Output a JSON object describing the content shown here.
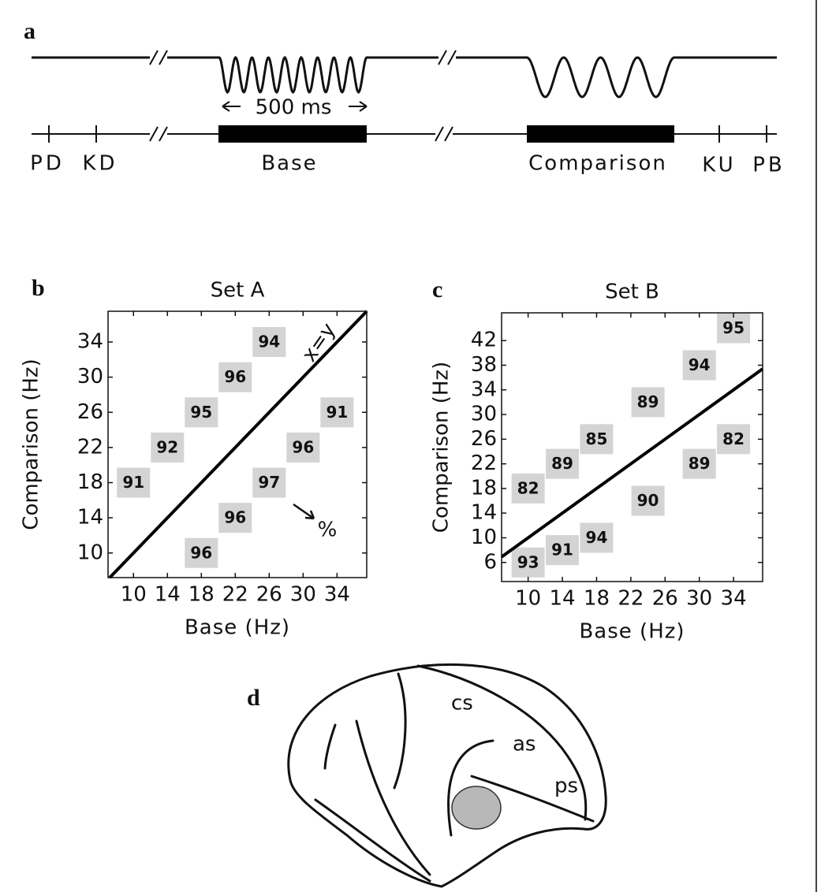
{
  "panel_a": {
    "letter": "a",
    "duration": "500 ms",
    "events": [
      "PD",
      "KD",
      "Base",
      "Comparison",
      "KU",
      "PB"
    ]
  },
  "chart_data": [
    {
      "type": "scatter",
      "panel_label": "b",
      "title": "Set A",
      "x_label": "Base (Hz)",
      "y_label": "Comparison (Hz)",
      "xlim": [
        7,
        37.5
      ],
      "ylim": [
        7.2,
        37.5
      ],
      "xticks": [
        10,
        14,
        18,
        22,
        26,
        30,
        34
      ],
      "yticks": [
        10,
        14,
        18,
        22,
        26,
        30,
        34
      ],
      "x": [
        10,
        14,
        18,
        22,
        26,
        18,
        22,
        26,
        30,
        34
      ],
      "y": [
        18,
        22,
        26,
        30,
        34,
        10,
        14,
        18,
        22,
        26
      ],
      "labels": [
        91,
        92,
        95,
        96,
        94,
        96,
        96,
        97,
        96,
        91
      ],
      "box_color": "#d4d4d4",
      "identity_line": true,
      "line_label": "x=y",
      "annotation": "%"
    },
    {
      "type": "scatter",
      "panel_label": "c",
      "title": "Set B",
      "x_label": "Base (Hz)",
      "y_label": "Comparison (Hz)",
      "xlim": [
        6.9,
        37.4
      ],
      "ylim": [
        2.9,
        46.5
      ],
      "xticks": [
        10,
        14,
        18,
        22,
        26,
        30,
        34
      ],
      "yticks": [
        6,
        10,
        14,
        18,
        22,
        26,
        30,
        34,
        38,
        42
      ],
      "x": [
        10,
        14,
        18,
        24,
        10,
        14,
        18,
        24,
        30,
        34,
        30,
        34
      ],
      "y": [
        6,
        8,
        10,
        16,
        18,
        22,
        26,
        32,
        38,
        44,
        22,
        26
      ],
      "labels": [
        93,
        91,
        94,
        90,
        82,
        89,
        85,
        89,
        94,
        95,
        89,
        82
      ],
      "box_color": "#d4d4d4",
      "identity_line": true
    }
  ],
  "panel_d": {
    "letter": "d",
    "labels": [
      "cs",
      "as",
      "ps"
    ]
  }
}
